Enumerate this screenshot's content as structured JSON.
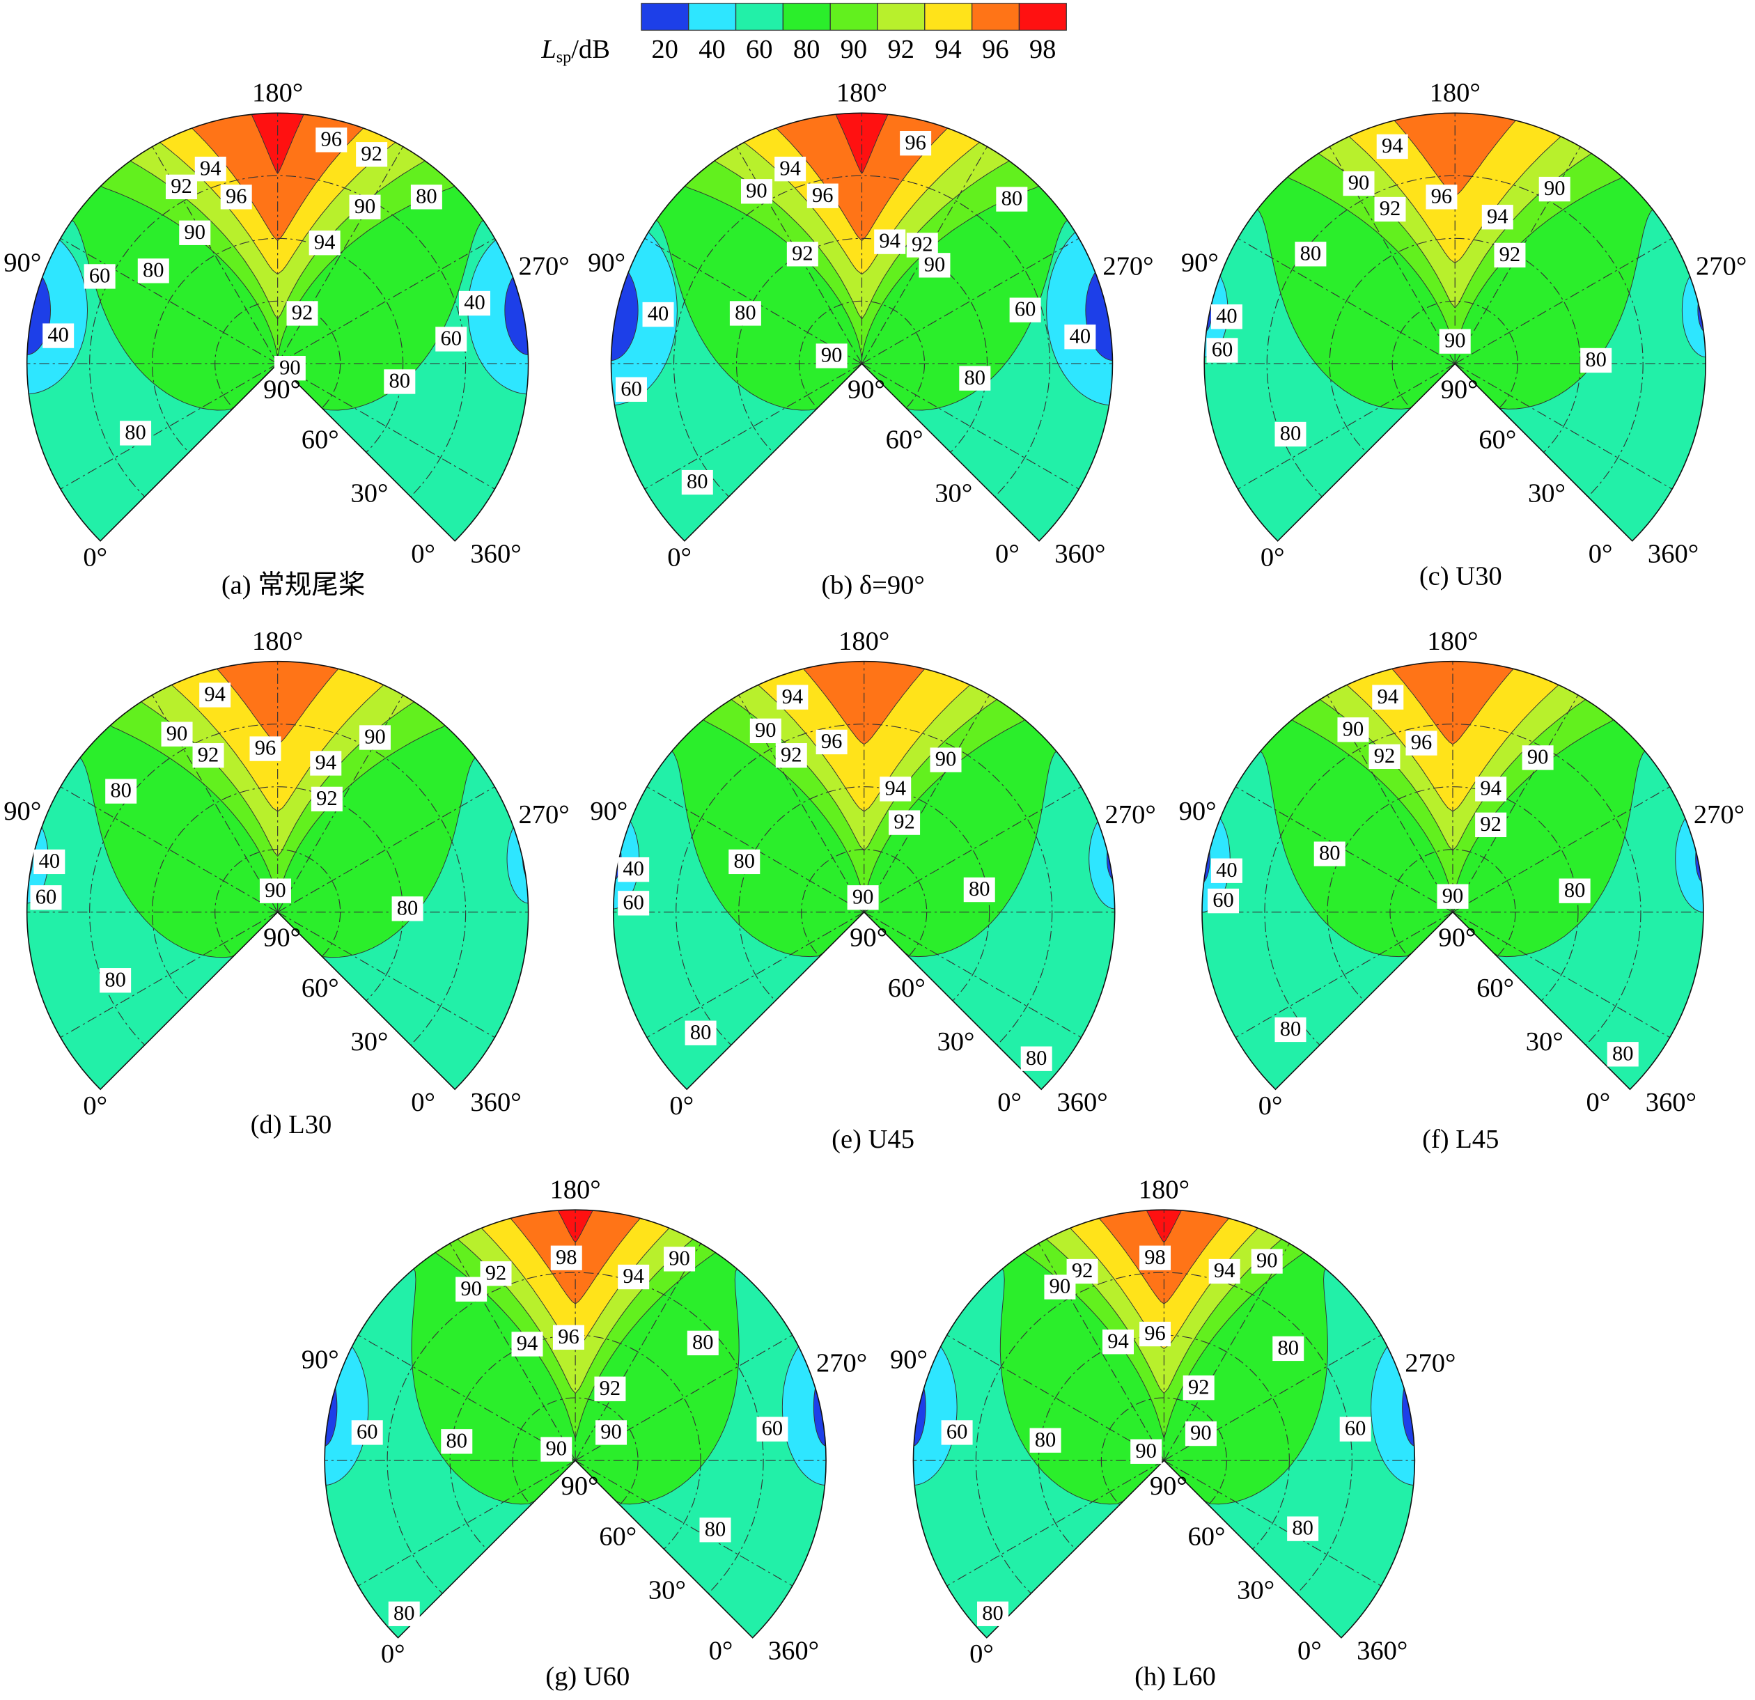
{
  "colorbar": {
    "label": {
      "symbol": "L",
      "subscript": "sp",
      "unit": "/dB"
    },
    "levels": [
      20,
      40,
      60,
      80,
      90,
      92,
      94,
      96,
      98
    ],
    "colors": [
      "#1d3fe8",
      "#2ee6ff",
      "#22f0a8",
      "#2bee2b",
      "#62f01e",
      "#b8f02c",
      "#ffe31a",
      "#ff7417",
      "#ff1111"
    ]
  },
  "chart_data": [
    {
      "type": "contour",
      "title": "(a) 常规尾桨",
      "angle_labels": [
        "180°",
        "90°",
        "270°",
        "0°",
        "0°",
        "360°",
        "90°",
        "60°",
        "30°"
      ],
      "contour_labels": [
        96,
        92,
        94,
        92,
        96,
        80,
        90,
        90,
        94,
        80,
        60,
        40,
        92,
        40,
        60,
        90,
        80,
        80
      ]
    },
    {
      "type": "contour",
      "title": "(b) δ=90°",
      "angle_labels": [
        "180°",
        "90°",
        "270°",
        "0°",
        "0°",
        "360°",
        "90°",
        "60°",
        "30°"
      ],
      "contour_labels": [
        96,
        94,
        90,
        96,
        80,
        94,
        92,
        92,
        90,
        40,
        80,
        60,
        40,
        90,
        80,
        60,
        80
      ]
    },
    {
      "type": "contour",
      "title": "(c) U30",
      "angle_labels": [
        "180°",
        "90°",
        "270°",
        "0°",
        "0°",
        "360°",
        "90°",
        "60°",
        "30°"
      ],
      "contour_labels": [
        94,
        90,
        96,
        90,
        92,
        94,
        80,
        92,
        40,
        90,
        60,
        80,
        80
      ]
    },
    {
      "type": "contour",
      "title": "(d) L30",
      "angle_labels": [
        "180°",
        "90°",
        "270°",
        "0°",
        "0°",
        "360°",
        "90°",
        "60°",
        "30°"
      ],
      "contour_labels": [
        94,
        90,
        96,
        90,
        92,
        94,
        80,
        92,
        40,
        90,
        60,
        80,
        80
      ]
    },
    {
      "type": "contour",
      "title": "(e) U45",
      "angle_labels": [
        "180°",
        "90°",
        "270°",
        "0°",
        "0°",
        "360°",
        "90°",
        "60°",
        "30°"
      ],
      "contour_labels": [
        94,
        90,
        96,
        92,
        90,
        94,
        92,
        80,
        40,
        90,
        60,
        80,
        80,
        80
      ]
    },
    {
      "type": "contour",
      "title": "(f) L45",
      "angle_labels": [
        "180°",
        "90°",
        "270°",
        "0°",
        "0°",
        "360°",
        "90°",
        "60°",
        "30°"
      ],
      "contour_labels": [
        94,
        90,
        96,
        92,
        90,
        94,
        92,
        80,
        40,
        90,
        60,
        80,
        80,
        80
      ]
    },
    {
      "type": "contour",
      "title": "(g) U60",
      "angle_labels": [
        "180°",
        "90°",
        "270°",
        "0°",
        "0°",
        "360°",
        "90°",
        "60°",
        "30°"
      ],
      "contour_labels": [
        98,
        90,
        92,
        94,
        90,
        96,
        94,
        80,
        92,
        60,
        90,
        60,
        80,
        90,
        80,
        80
      ]
    },
    {
      "type": "contour",
      "title": "(h) L60",
      "angle_labels": [
        "180°",
        "90°",
        "270°",
        "0°",
        "0°",
        "360°",
        "90°",
        "60°",
        "30°"
      ],
      "contour_labels": [
        98,
        90,
        92,
        94,
        90,
        96,
        94,
        80,
        92,
        60,
        90,
        60,
        80,
        90,
        80,
        80
      ]
    }
  ]
}
